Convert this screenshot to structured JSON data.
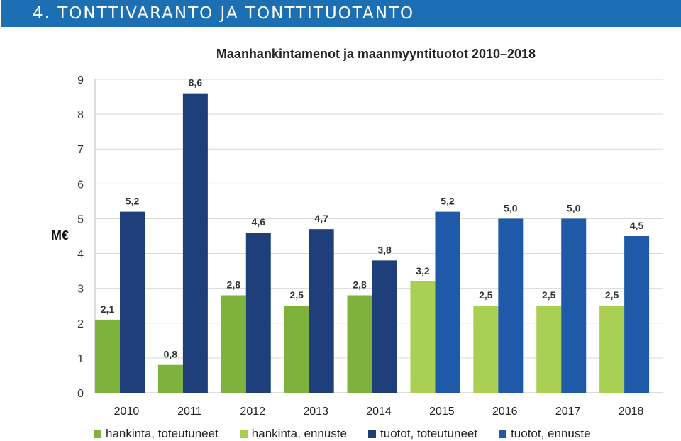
{
  "header": {
    "title": "4. TONTTIVARANTO JA TONTTITUOTANTO"
  },
  "chart_data": {
    "type": "bar",
    "title": "Maanhankintamenot ja maanmyyntituotot 2010–2018",
    "ylabel": "M€",
    "xlabel": "",
    "ylim": [
      0,
      9
    ],
    "yticks": [
      "0",
      "1",
      "2",
      "3",
      "4",
      "5",
      "6",
      "7",
      "8",
      "9"
    ],
    "grid": true,
    "legend_position": "bottom",
    "categories": [
      "2010",
      "2011",
      "2012",
      "2013",
      "2014",
      "2015",
      "2016",
      "2017",
      "2018"
    ],
    "series": [
      {
        "name": "hankinta, toteutuneet",
        "color": "#7fb23c",
        "values": [
          2.1,
          0.8,
          2.8,
          2.5,
          2.8,
          null,
          null,
          null,
          null
        ],
        "labels": [
          "2,1",
          "0,8",
          "2,8",
          "2,5",
          "2,8",
          "",
          "",
          "",
          ""
        ]
      },
      {
        "name": "hankinta, ennuste",
        "color": "#a9d052",
        "values": [
          null,
          null,
          null,
          null,
          null,
          3.2,
          2.5,
          2.5,
          2.5
        ],
        "labels": [
          "",
          "",
          "",
          "",
          "",
          "3,2",
          "2,5",
          "2,5",
          "2,5"
        ]
      },
      {
        "name": "tuotot, toteutuneet",
        "color": "#1f3f7a",
        "values": [
          5.2,
          8.6,
          4.6,
          4.7,
          3.8,
          null,
          null,
          null,
          null
        ],
        "labels": [
          "5,2",
          "8,6",
          "4,6",
          "4,7",
          "3,8",
          "",
          "",
          "",
          ""
        ]
      },
      {
        "name": "tuotot, ennuste",
        "color": "#1f5aa8",
        "values": [
          null,
          null,
          null,
          null,
          null,
          5.2,
          5.0,
          5.0,
          4.5
        ],
        "labels": [
          "",
          "",
          "",
          "",
          "",
          "5,2",
          "5,0",
          "5,0",
          "4,5"
        ]
      }
    ]
  }
}
